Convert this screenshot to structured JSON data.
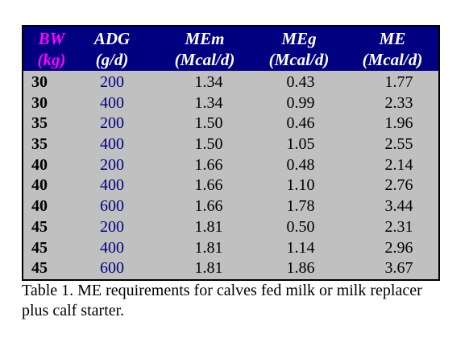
{
  "colors": {
    "header_bg": "#000080",
    "header_text": "#ffffff",
    "bw_header": "#ff00ff",
    "body_bg": "#c0c0c0",
    "adg_text": "#000080"
  },
  "headers": [
    {
      "line1": "BW",
      "line2": "(kg)"
    },
    {
      "line1": "ADG",
      "line2": "(g/d)"
    },
    {
      "line1": "MEm",
      "line2": "(Mcal/d)"
    },
    {
      "line1": "MEg",
      "line2": "(Mcal/d)"
    },
    {
      "line1": "ME",
      "line2": "(Mcal/d)"
    }
  ],
  "rows": [
    {
      "bw": "30",
      "adg": "200",
      "mem": "1.34",
      "meg": "0.43",
      "me": "1.77"
    },
    {
      "bw": "30",
      "adg": "400",
      "mem": "1.34",
      "meg": "0.99",
      "me": "2.33"
    },
    {
      "bw": "35",
      "adg": "200",
      "mem": "1.50",
      "meg": "0.46",
      "me": "1.96"
    },
    {
      "bw": "35",
      "adg": "400",
      "mem": "1.50",
      "meg": "1.05",
      "me": "2.55"
    },
    {
      "bw": "40",
      "adg": "200",
      "mem": "1.66",
      "meg": "0.48",
      "me": "2.14"
    },
    {
      "bw": "40",
      "adg": "400",
      "mem": "1.66",
      "meg": "1.10",
      "me": "2.76"
    },
    {
      "bw": "40",
      "adg": "600",
      "mem": "1.66",
      "meg": "1.78",
      "me": "3.44"
    },
    {
      "bw": "45",
      "adg": "200",
      "mem": "1.81",
      "meg": "0.50",
      "me": "2.31"
    },
    {
      "bw": "45",
      "adg": "400",
      "mem": "1.81",
      "meg": "1.14",
      "me": "2.96"
    },
    {
      "bw": "45",
      "adg": "600",
      "mem": "1.81",
      "meg": "1.86",
      "me": "3.67"
    }
  ],
  "caption": "Table 1.  ME requirements for calves fed milk or milk replacer plus calf starter."
}
